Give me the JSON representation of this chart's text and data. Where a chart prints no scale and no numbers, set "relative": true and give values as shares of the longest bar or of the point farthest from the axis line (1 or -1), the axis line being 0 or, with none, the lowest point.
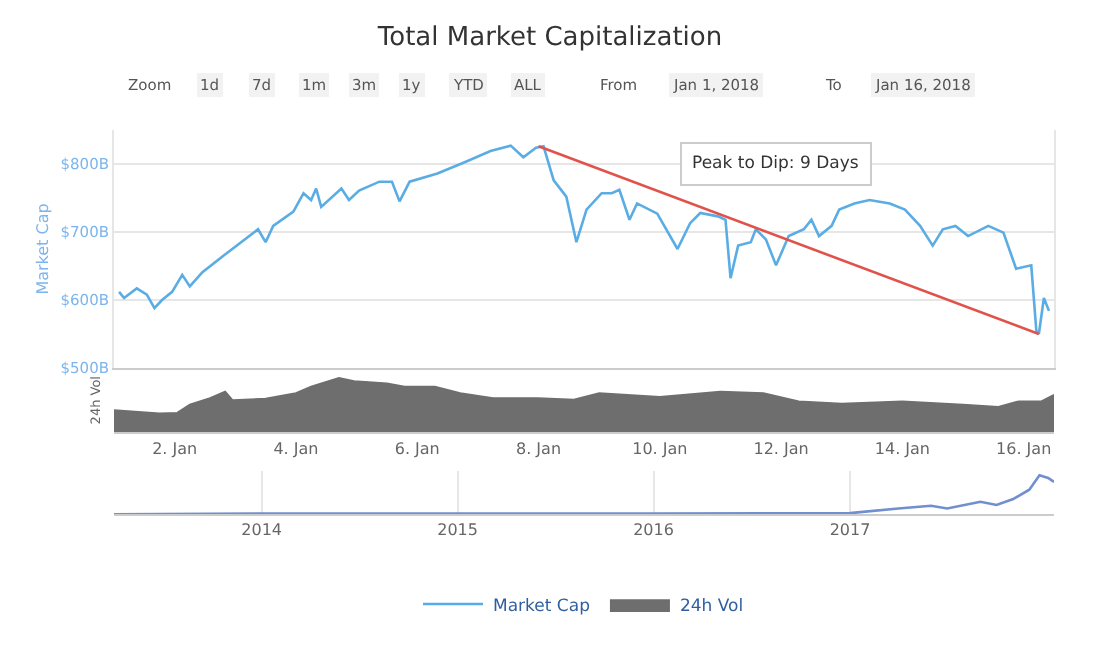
{
  "chart_data": [
    {
      "type": "line",
      "title": "Total Market Capitalization",
      "ylabel": "Market Cap",
      "legend": "bottom",
      "grid": "y",
      "marker": "none",
      "line_style": "solid",
      "tick_labels": "y",
      "xlim": [
        "2018-01-01T00:00",
        "2018-01-16T12:00"
      ],
      "ylim": [
        500,
        850
      ],
      "yticks": [
        {
          "value": 500,
          "label": "$500B"
        },
        {
          "value": 600,
          "label": "$600B"
        },
        {
          "value": 700,
          "label": "$700B"
        },
        {
          "value": 800,
          "label": "$800B"
        }
      ],
      "annotations": [
        "Peak to Dip: 9 Days"
      ],
      "series": [
        {
          "name": "Market Cap",
          "color": "#5aade4",
          "x": [
            "2018-01-01T02:00",
            "2018-01-01T04:00",
            "2018-01-01T09:00",
            "2018-01-01T13:00",
            "2018-01-01T16:00",
            "2018-01-01T19:00",
            "2018-01-01T23:00",
            "2018-01-02T03:00",
            "2018-01-02T06:00",
            "2018-01-02T11:00",
            "2018-01-02T21:00",
            "2018-01-03T09:00",
            "2018-01-03T12:00",
            "2018-01-03T15:00",
            "2018-01-03T23:00",
            "2018-01-04T03:00",
            "2018-01-04T06:00",
            "2018-01-04T08:00",
            "2018-01-04T10:00",
            "2018-01-04T18:00",
            "2018-01-04T21:00",
            "2018-01-05T01:00",
            "2018-01-05T09:00",
            "2018-01-05T14:00",
            "2018-01-05T17:00",
            "2018-01-05T21:00",
            "2018-01-06T08:00",
            "2018-01-06T19:00",
            "2018-01-07T05:00",
            "2018-01-07T13:00",
            "2018-01-07T18:00",
            "2018-01-07T23:00",
            "2018-01-08T02:00",
            "2018-01-08T06:00",
            "2018-01-08T11:00",
            "2018-01-08T15:00",
            "2018-01-08T19:00",
            "2018-01-09T01:00",
            "2018-01-09T05:00",
            "2018-01-09T08:00",
            "2018-01-09T12:00",
            "2018-01-09T15:00",
            "2018-01-09T23:00",
            "2018-01-10T07:00",
            "2018-01-10T12:00",
            "2018-01-10T16:00",
            "2018-01-10T23:00",
            "2018-01-11T02:00",
            "2018-01-11T04:00",
            "2018-01-11T07:00",
            "2018-01-11T12:00",
            "2018-01-11T14:00",
            "2018-01-11T18:00",
            "2018-01-11T22:00",
            "2018-01-12T03:00",
            "2018-01-12T09:00",
            "2018-01-12T12:00",
            "2018-01-12T15:00",
            "2018-01-12T20:00",
            "2018-01-12T23:00",
            "2018-01-13T05:00",
            "2018-01-13T11:00",
            "2018-01-13T19:00",
            "2018-01-14T01:00",
            "2018-01-14T07:00",
            "2018-01-14T12:00",
            "2018-01-14T16:00",
            "2018-01-14T21:00",
            "2018-01-15T02:00",
            "2018-01-15T10:00",
            "2018-01-15T16:00",
            "2018-01-15T21:00",
            "2018-01-16T03:00",
            "2018-01-16T05:00",
            "2018-01-16T06:00",
            "2018-01-16T08:00",
            "2018-01-16T10:00"
          ],
          "values": [
            612,
            603,
            617,
            608,
            588,
            600,
            612,
            637,
            620,
            641,
            670,
            704,
            685,
            709,
            730,
            757,
            747,
            764,
            737,
            764,
            747,
            761,
            774,
            774,
            745,
            774,
            786,
            803,
            819,
            827,
            810,
            824,
            826,
            776,
            752,
            685,
            733,
            757,
            757,
            762,
            718,
            742,
            727,
            675,
            713,
            728,
            723,
            718,
            632,
            680,
            685,
            704,
            689,
            651,
            694,
            704,
            718,
            694,
            709,
            733,
            742,
            747,
            742,
            733,
            709,
            680,
            704,
            709,
            694,
            709,
            699,
            646,
            651,
            555,
            550,
            603,
            584
          ]
        },
        {
          "color": "#e0524a",
          "x": [
            "2018-01-08T00:00",
            "2018-01-16T06:00"
          ],
          "values": [
            826,
            550
          ]
        }
      ]
    },
    {
      "type": "other",
      "annotations": [
        "Zoom",
        "1d",
        "7d",
        "1m",
        "3m",
        "1y",
        "YTD",
        "ALL",
        "From",
        "Jan 1, 2018",
        "To",
        "Jan 16, 2018"
      ]
    },
    {
      "type": "area",
      "ylabel": "24h Vol",
      "relative": true,
      "legend": "bottom",
      "xlim": [
        "2018-01-01T00:00",
        "2018-01-16T12:00"
      ],
      "xticks": [
        {
          "value": "2018-01-02",
          "label": "2. Jan"
        },
        {
          "value": "2018-01-04",
          "label": "4. Jan"
        },
        {
          "value": "2018-01-06",
          "label": "6. Jan"
        },
        {
          "value": "2018-01-08",
          "label": "8. Jan"
        },
        {
          "value": "2018-01-10",
          "label": "10. Jan"
        },
        {
          "value": "2018-01-12",
          "label": "12. Jan"
        },
        {
          "value": "2018-01-14",
          "label": "14. Jan"
        },
        {
          "value": "2018-01-16",
          "label": "16. Jan"
        }
      ],
      "series": [
        {
          "name": "24h Vol",
          "color": "#6e6e6e",
          "x": [
            "2018-01-01T00:00",
            "2018-01-01T18:00",
            "2018-01-02T01:00",
            "2018-01-02T06:00",
            "2018-01-02T14:00",
            "2018-01-02T20:00",
            "2018-01-02T23:00",
            "2018-01-03T12:00",
            "2018-01-04T00:00",
            "2018-01-04T06:00",
            "2018-01-04T17:00",
            "2018-01-04T23:00",
            "2018-01-05T12:00",
            "2018-01-05T19:00",
            "2018-01-06T07:00",
            "2018-01-06T17:00",
            "2018-01-07T06:00",
            "2018-01-08T00:00",
            "2018-01-08T14:00",
            "2018-01-09T00:00",
            "2018-01-10T00:00",
            "2018-01-11T00:00",
            "2018-01-11T17:00",
            "2018-01-12T07:00",
            "2018-01-13T00:00",
            "2018-01-14T00:00",
            "2018-01-15T00:00",
            "2018-01-15T14:00",
            "2018-01-15T22:00",
            "2018-01-16T07:00",
            "2018-01-16T12:00"
          ],
          "values": [
            0.41,
            0.35,
            0.36,
            0.51,
            0.63,
            0.75,
            0.59,
            0.62,
            0.72,
            0.84,
            1.0,
            0.94,
            0.9,
            0.84,
            0.84,
            0.72,
            0.63,
            0.63,
            0.6,
            0.72,
            0.65,
            0.75,
            0.72,
            0.57,
            0.53,
            0.57,
            0.51,
            0.47,
            0.57,
            0.57,
            0.69
          ]
        }
      ]
    },
    {
      "type": "line",
      "relative": true,
      "grid": "x",
      "marker": "none",
      "xlim": [
        "2013-04-01",
        "2018-01-16"
      ],
      "xticks": [
        {
          "value": "2014-01-01",
          "label": "2014"
        },
        {
          "value": "2015-01-01",
          "label": "2015"
        },
        {
          "value": "2016-01-01",
          "label": "2016"
        },
        {
          "value": "2017-01-01",
          "label": "2017"
        }
      ],
      "series": [
        {
          "color": "#6f8fcf",
          "x": [
            "2013-04-01",
            "2014-01-01",
            "2015-01-01",
            "2016-01-01",
            "2017-01-01",
            "2017-04-01",
            "2017-06-01",
            "2017-07-01",
            "2017-09-01",
            "2017-10-01",
            "2017-11-01",
            "2017-12-01",
            "2017-12-20",
            "2018-01-05",
            "2018-01-16"
          ],
          "values": [
            0,
            0.02,
            0.02,
            0.02,
            0.03,
            0.15,
            0.22,
            0.15,
            0.32,
            0.24,
            0.39,
            0.63,
            1.0,
            0.93,
            0.83
          ]
        }
      ]
    }
  ]
}
